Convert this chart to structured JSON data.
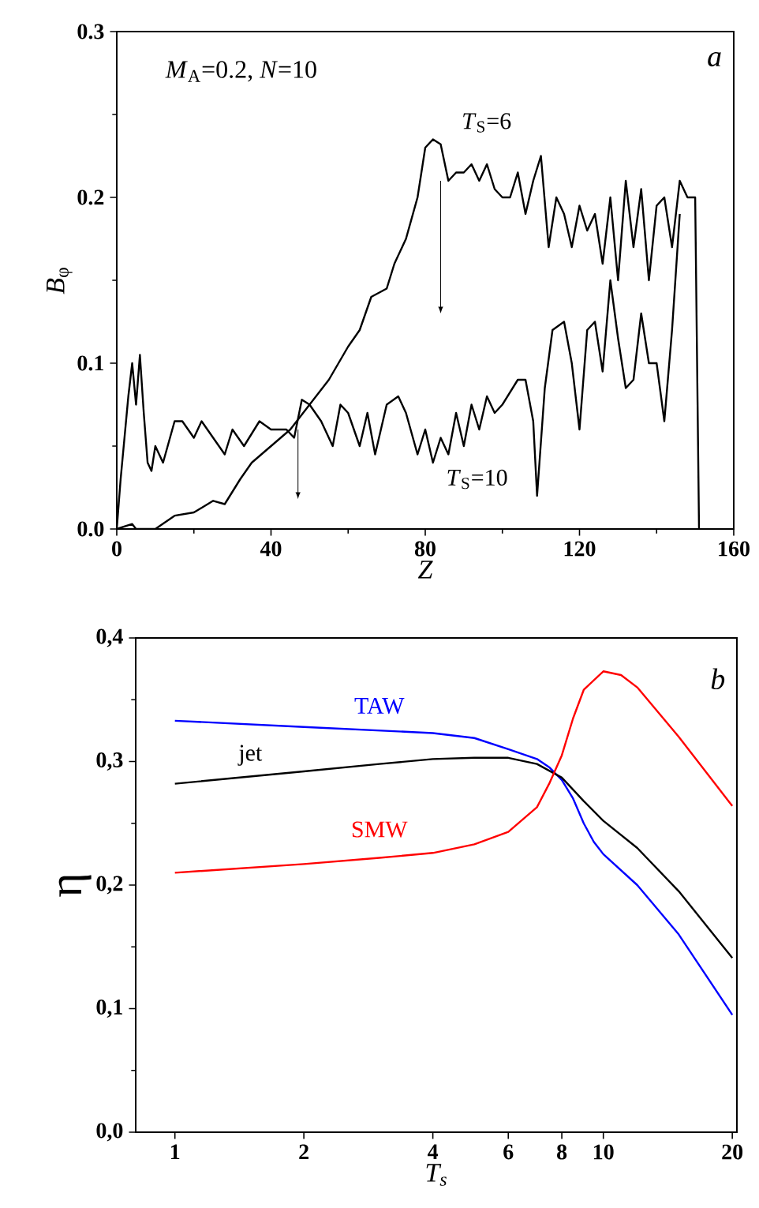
{
  "chart_data": [
    {
      "type": "line",
      "xlabel": "Z",
      "ylabel": "*B*$_{φ}$",
      "xlim": [
        0,
        160
      ],
      "ylim": [
        0,
        0.3
      ],
      "xticks": [
        0,
        40,
        80,
        120,
        160
      ],
      "yticks": [
        {
          "value": 0,
          "label": "0.0"
        },
        {
          "value": 0.1,
          "label": "0.1"
        },
        {
          "value": 0.2,
          "label": "0.2"
        },
        {
          "value": 0.3,
          "label": "0.3"
        }
      ],
      "annotations": [
        "*M*$_{A}$=0.2, *N*=10",
        "a"
      ],
      "series": [
        {
          "name": "*T*$_{S}$=6",
          "color": "#000000",
          "x": [
            0,
            4,
            5,
            10,
            15,
            20,
            25,
            28,
            32,
            35,
            40,
            45,
            50,
            55,
            60,
            63,
            66,
            70,
            72,
            75,
            78,
            80,
            82,
            84,
            86,
            88,
            90,
            92,
            94,
            96,
            98,
            100,
            102,
            104,
            106,
            108,
            110,
            112,
            114,
            116,
            118,
            120,
            122,
            124,
            126,
            128,
            130,
            132,
            134,
            136,
            138,
            140,
            142,
            144,
            146,
            148,
            150,
            151
          ],
          "values": [
            0,
            0.003,
            0,
            0,
            0.008,
            0.01,
            0.017,
            0.015,
            0.03,
            0.04,
            0.05,
            0.06,
            0.075,
            0.09,
            0.11,
            0.12,
            0.14,
            0.145,
            0.16,
            0.175,
            0.2,
            0.23,
            0.235,
            0.232,
            0.21,
            0.215,
            0.215,
            0.22,
            0.21,
            0.22,
            0.205,
            0.2,
            0.2,
            0.215,
            0.19,
            0.21,
            0.225,
            0.17,
            0.2,
            0.19,
            0.17,
            0.195,
            0.18,
            0.19,
            0.16,
            0.2,
            0.15,
            0.21,
            0.17,
            0.205,
            0.15,
            0.195,
            0.2,
            0.17,
            0.21,
            0.2,
            0.2,
            0
          ]
        },
        {
          "name": "*T*$_{S}$=10",
          "color": "#000000",
          "x": [
            0,
            1,
            3,
            4,
            5,
            6,
            7,
            8,
            9,
            10,
            12,
            15,
            17,
            20,
            22,
            25,
            28,
            30,
            33,
            37,
            40,
            44,
            46,
            48,
            50,
            53,
            56,
            58,
            60,
            63,
            65,
            67,
            70,
            73,
            75,
            78,
            80,
            82,
            84,
            86,
            88,
            90,
            92,
            94,
            96,
            98,
            100,
            104,
            106,
            108,
            109,
            111,
            113,
            116,
            118,
            120,
            122,
            124,
            126,
            128,
            130,
            132,
            134,
            136,
            138,
            140,
            142,
            144,
            146
          ],
          "values": [
            0,
            0.03,
            0.08,
            0.1,
            0.075,
            0.105,
            0.07,
            0.04,
            0.035,
            0.05,
            0.04,
            0.065,
            0.065,
            0.055,
            0.065,
            0.055,
            0.045,
            0.06,
            0.05,
            0.065,
            0.06,
            0.06,
            0.055,
            0.078,
            0.075,
            0.065,
            0.05,
            0.075,
            0.07,
            0.05,
            0.07,
            0.045,
            0.075,
            0.08,
            0.07,
            0.045,
            0.06,
            0.04,
            0.055,
            0.045,
            0.07,
            0.05,
            0.075,
            0.06,
            0.08,
            0.07,
            0.075,
            0.09,
            0.09,
            0.065,
            0.02,
            0.085,
            0.12,
            0.125,
            0.1,
            0.06,
            0.12,
            0.125,
            0.095,
            0.15,
            0.115,
            0.085,
            0.09,
            0.13,
            0.1,
            0.1,
            0.065,
            0.12,
            0.19
          ]
        }
      ]
    },
    {
      "type": "line",
      "xlabel": "*T*$_{s}$",
      "ylabel": "η",
      "log": "x",
      "xlim": [
        0.81,
        20.5
      ],
      "ylim": [
        0,
        0.4
      ],
      "xticks": [
        1,
        2,
        4,
        6,
        8,
        10,
        20
      ],
      "yticks": [
        {
          "value": 0,
          "label": "0,0"
        },
        {
          "value": 0.1,
          "label": "0,1"
        },
        {
          "value": 0.2,
          "label": "0,2"
        },
        {
          "value": 0.3,
          "label": "0,3"
        },
        {
          "value": 0.4,
          "label": "0,4"
        }
      ],
      "annotations": [
        "b"
      ],
      "series": [
        {
          "name": "TAW",
          "color": "#0000ff",
          "x": [
            1,
            2,
            4,
            5,
            6,
            7,
            7.5,
            8,
            8.5,
            9,
            9.5,
            10,
            12,
            15,
            20
          ],
          "values": [
            0.333,
            0.328,
            0.323,
            0.319,
            0.31,
            0.302,
            0.295,
            0.285,
            0.27,
            0.25,
            0.235,
            0.225,
            0.2,
            0.16,
            0.095
          ]
        },
        {
          "name": "jet",
          "color": "#000000",
          "x": [
            1,
            2,
            3,
            4,
            5,
            6,
            7,
            8,
            9,
            10,
            12,
            15,
            20
          ],
          "values": [
            0.282,
            0.292,
            0.298,
            0.302,
            0.303,
            0.303,
            0.298,
            0.287,
            0.268,
            0.252,
            0.23,
            0.195,
            0.141
          ]
        },
        {
          "name": "SMW",
          "color": "#ff0000",
          "x": [
            1,
            2,
            3,
            4,
            5,
            6,
            7,
            7.5,
            8,
            8.5,
            9,
            10,
            11,
            12,
            15,
            20
          ],
          "values": [
            0.21,
            0.217,
            0.222,
            0.226,
            0.233,
            0.243,
            0.263,
            0.283,
            0.305,
            0.335,
            0.358,
            0.373,
            0.37,
            0.36,
            0.32,
            0.264
          ]
        }
      ]
    }
  ]
}
